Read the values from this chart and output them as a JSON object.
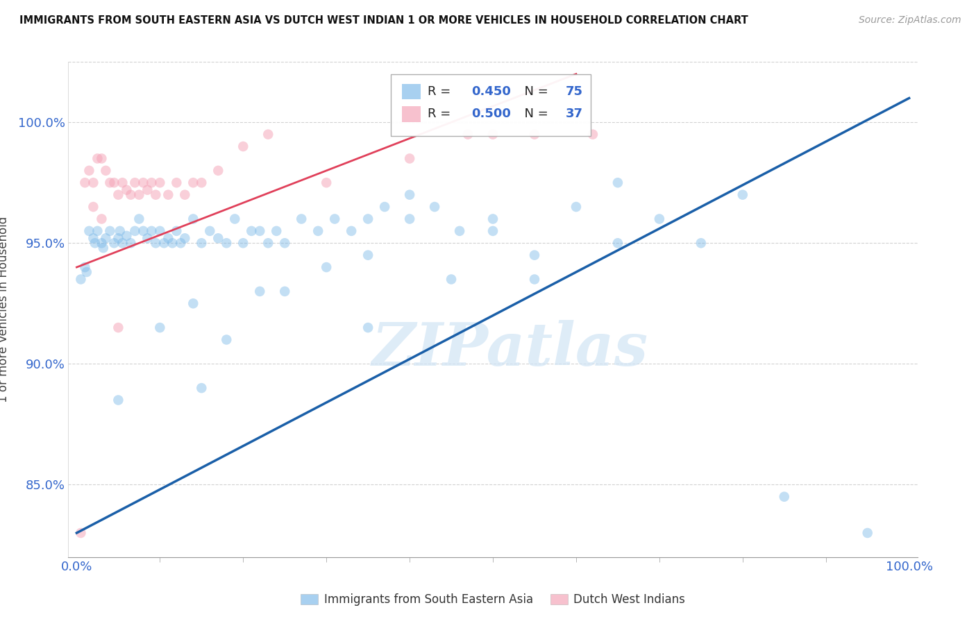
{
  "title": "IMMIGRANTS FROM SOUTH EASTERN ASIA VS DUTCH WEST INDIAN 1 OR MORE VEHICLES IN HOUSEHOLD CORRELATION CHART",
  "source": "Source: ZipAtlas.com",
  "ylabel": "1 or more Vehicles in Household",
  "watermark": "ZIPatlas",
  "xlim": [
    -1,
    101
  ],
  "ylim": [
    82.0,
    102.5
  ],
  "yticks": [
    85.0,
    90.0,
    95.0,
    100.0
  ],
  "ytick_labels": [
    "85.0%",
    "90.0%",
    "95.0%",
    "100.0%"
  ],
  "xtick_labels": [
    "0.0%",
    "100.0%"
  ],
  "legend_blue_label": "Immigrants from South Eastern Asia",
  "legend_pink_label": "Dutch West Indians",
  "blue_color": "#7ab8e8",
  "pink_color": "#f4a0b5",
  "blue_line_color": "#1a5fa8",
  "pink_line_color": "#e0405a",
  "r_n_color": "#3366cc",
  "blue_x": [
    0.5,
    1.0,
    1.2,
    1.5,
    2.0,
    2.2,
    2.5,
    3.0,
    3.2,
    3.5,
    4.0,
    4.5,
    5.0,
    5.2,
    5.5,
    6.0,
    6.5,
    7.0,
    7.5,
    8.0,
    8.5,
    9.0,
    9.5,
    10.0,
    10.5,
    11.0,
    11.5,
    12.0,
    12.5,
    13.0,
    14.0,
    15.0,
    16.0,
    17.0,
    18.0,
    19.0,
    20.0,
    21.0,
    22.0,
    23.0,
    24.0,
    25.0,
    27.0,
    29.0,
    31.0,
    33.0,
    35.0,
    37.0,
    40.0,
    43.0,
    46.0,
    30.0,
    35.0,
    40.0,
    50.0,
    55.0,
    60.0,
    65.0,
    70.0,
    5.0,
    10.0,
    14.0,
    18.0,
    22.0,
    85.0,
    95.0,
    50.0,
    80.0,
    15.0,
    25.0,
    35.0,
    45.0,
    55.0,
    65.0,
    75.0
  ],
  "blue_y": [
    93.5,
    94.0,
    93.8,
    95.5,
    95.2,
    95.0,
    95.5,
    95.0,
    94.8,
    95.2,
    95.5,
    95.0,
    95.2,
    95.5,
    95.0,
    95.3,
    95.0,
    95.5,
    96.0,
    95.5,
    95.2,
    95.5,
    95.0,
    95.5,
    95.0,
    95.2,
    95.0,
    95.5,
    95.0,
    95.2,
    96.0,
    95.0,
    95.5,
    95.2,
    95.0,
    96.0,
    95.0,
    95.5,
    95.5,
    95.0,
    95.5,
    95.0,
    96.0,
    95.5,
    96.0,
    95.5,
    96.0,
    96.5,
    97.0,
    96.5,
    95.5,
    94.0,
    94.5,
    96.0,
    96.0,
    94.5,
    96.5,
    97.5,
    96.0,
    88.5,
    91.5,
    92.5,
    91.0,
    93.0,
    84.5,
    83.0,
    95.5,
    97.0,
    89.0,
    93.0,
    91.5,
    93.5,
    93.5,
    95.0,
    95.0
  ],
  "pink_x": [
    0.5,
    1.0,
    1.5,
    2.0,
    2.5,
    3.0,
    3.5,
    4.0,
    4.5,
    5.0,
    5.5,
    6.0,
    6.5,
    7.0,
    7.5,
    8.0,
    8.5,
    9.0,
    9.5,
    10.0,
    11.0,
    12.0,
    13.0,
    14.0,
    15.0,
    17.0,
    20.0,
    23.0,
    30.0,
    40.0,
    47.0,
    50.0,
    55.0,
    62.0,
    2.0,
    3.0,
    5.0
  ],
  "pink_y": [
    83.0,
    97.5,
    98.0,
    97.5,
    98.5,
    98.5,
    98.0,
    97.5,
    97.5,
    97.0,
    97.5,
    97.2,
    97.0,
    97.5,
    97.0,
    97.5,
    97.2,
    97.5,
    97.0,
    97.5,
    97.0,
    97.5,
    97.0,
    97.5,
    97.5,
    98.0,
    99.0,
    99.5,
    97.5,
    98.5,
    99.5,
    99.5,
    99.5,
    99.5,
    96.5,
    96.0,
    91.5
  ],
  "blue_line_x0": 0,
  "blue_line_x1": 100,
  "blue_line_y0": 83.0,
  "blue_line_y1": 101.0,
  "pink_line_x0": 0,
  "pink_line_x1": 60,
  "pink_line_y0": 94.0,
  "pink_line_y1": 102.0,
  "background_color": "#ffffff",
  "grid_color": "#cccccc"
}
